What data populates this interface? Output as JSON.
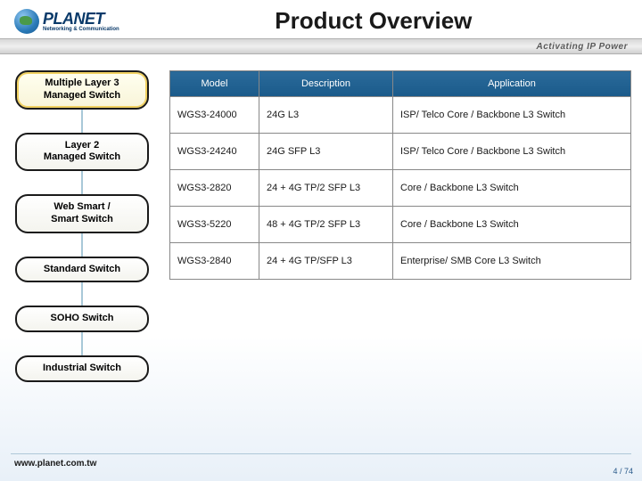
{
  "header": {
    "logo_text": "PLANET",
    "logo_sub": "Networking & Communication",
    "title": "Product Overview",
    "tagline": "Activating IP Power"
  },
  "sidebar": {
    "categories": [
      {
        "label": "Multiple Layer 3\nManaged Switch",
        "active": true
      },
      {
        "label": "Layer 2\nManaged Switch",
        "active": false
      },
      {
        "label": "Web Smart /\nSmart Switch",
        "active": false
      },
      {
        "label": "Standard Switch",
        "active": false
      },
      {
        "label": "SOHO Switch",
        "active": false
      },
      {
        "label": "Industrial Switch",
        "active": false
      }
    ]
  },
  "table": {
    "columns": [
      "Model",
      "Description",
      "Application"
    ],
    "rows": [
      [
        "WGS3-24000",
        "24G  L3",
        "ISP/ Telco Core / Backbone L3 Switch"
      ],
      [
        "WGS3-24240",
        "24G  SFP L3",
        "ISP/ Telco Core / Backbone L3 Switch"
      ],
      [
        "WGS3-2820",
        "24 + 4G TP/2 SFP L3",
        "Core / Backbone L3 Switch"
      ],
      [
        "WGS3-5220",
        "48 + 4G TP/2 SFP L3",
        "Core / Backbone L3 Switch"
      ],
      [
        "WGS3-2840",
        "24 + 4G TP/SFP L3",
        "Enterprise/ SMB Core L3 Switch"
      ]
    ],
    "header_bg": "#1a5a8a",
    "header_text_color": "#ffffff",
    "cell_bg": "#ffffff",
    "border_color": "#888888",
    "font_size": 11
  },
  "footer": {
    "url": "www.planet.com.tw",
    "page": "4 / 74"
  },
  "colors": {
    "title_color": "#1a1a1a",
    "tagline_color": "#5a5a5a",
    "connector": "#a8c8d8"
  }
}
